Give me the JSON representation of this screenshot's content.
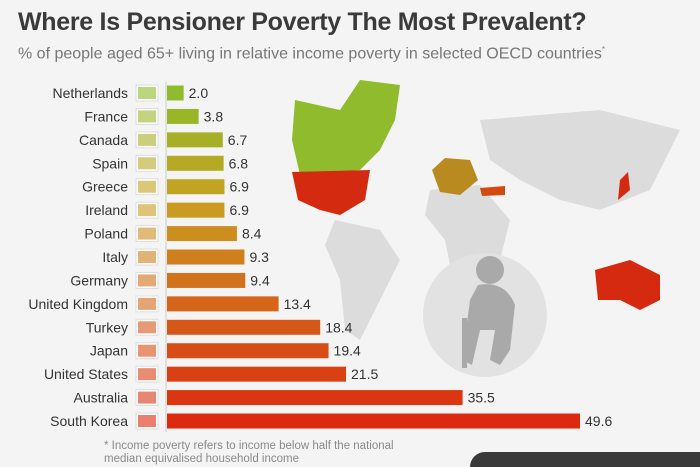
{
  "title": "Where Is Pensioner Poverty The Most Prevalent?",
  "subtitle": "% of people aged 65+ living in relative income poverty in selected OECD countries",
  "subtitle_marker": "*",
  "footnote": "* Income poverty refers to income below half the national median equivalised household income",
  "chart_data": {
    "type": "bar",
    "orientation": "horizontal",
    "title": "Where Is Pensioner Poverty The Most Prevalent?",
    "categories": [
      "Netherlands",
      "France",
      "Canada",
      "Spain",
      "Greece",
      "Ireland",
      "Poland",
      "Italy",
      "Germany",
      "United Kingdom",
      "Turkey",
      "Japan",
      "United States",
      "Australia",
      "South Korea"
    ],
    "values": [
      2.0,
      3.8,
      6.7,
      6.8,
      6.9,
      6.9,
      8.4,
      9.3,
      9.4,
      13.4,
      18.4,
      19.4,
      21.5,
      35.5,
      49.6
    ],
    "labels": [
      "2.0",
      "3.8",
      "6.7",
      "6.8",
      "6.9",
      "6.9",
      "8.4",
      "9.3",
      "9.4",
      "13.4",
      "18.4",
      "19.4",
      "21.5",
      "35.5",
      "49.6"
    ],
    "color_scale": [
      "#8fbb2c",
      "#c8a020",
      "#d5601a",
      "#dc2a10"
    ],
    "xlim": [
      0,
      50
    ],
    "grid": false,
    "legend": "none"
  }
}
